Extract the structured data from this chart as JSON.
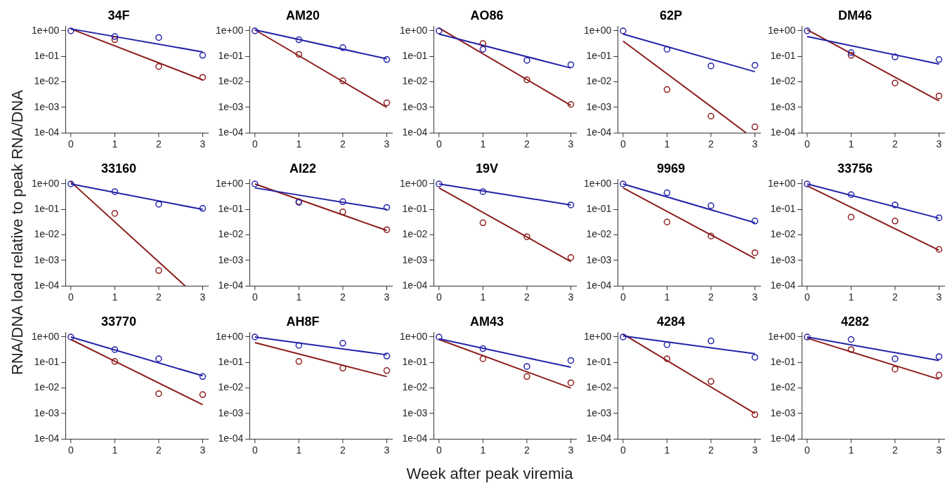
{
  "chart_data": [
    {
      "type": "scatter",
      "title": "34F",
      "x": [
        0,
        1,
        2,
        3
      ],
      "xlim": [
        -0.12,
        3.12
      ],
      "xticks": [
        0,
        1,
        2,
        3
      ],
      "ylim": [
        0.0001,
        1.5
      ],
      "yticks": [
        {
          "value": 1,
          "label": "1e+00"
        },
        {
          "value": 0.1,
          "label": "1e-01"
        },
        {
          "value": 0.01,
          "label": "1e-02"
        },
        {
          "value": 0.001,
          "label": "1e-03"
        },
        {
          "value": 0.0001,
          "label": "1e-04"
        }
      ],
      "log": "y",
      "marker": "circle",
      "series": [
        {
          "color": "#2323a8",
          "values": [
            1,
            0.6,
            0.55,
            0.11
          ]
        },
        {
          "color": "#8b1c1c",
          "values": [
            null,
            0.45,
            0.04,
            0.015
          ]
        },
        {
          "type": "line",
          "marker": "none",
          "color": "#2323a8",
          "x": [
            0,
            3
          ],
          "values": [
            1.2,
            0.15
          ]
        },
        {
          "type": "line",
          "marker": "none",
          "color": "#8b1c1c",
          "x": [
            0,
            3
          ],
          "values": [
            1.2,
            0.012
          ]
        }
      ]
    },
    {
      "type": "scatter",
      "title": "AM20",
      "x": [
        0,
        1,
        2,
        3
      ],
      "xlim": [
        -0.12,
        3.12
      ],
      "xticks": [
        0,
        1,
        2,
        3
      ],
      "ylim": [
        0.0001,
        1.5
      ],
      "yticks": [
        {
          "value": 1,
          "label": "1e+00"
        },
        {
          "value": 0.1,
          "label": "1e-01"
        },
        {
          "value": 0.01,
          "label": "1e-02"
        },
        {
          "value": 0.001,
          "label": "1e-03"
        },
        {
          "value": 0.0001,
          "label": "1e-04"
        }
      ],
      "log": "y",
      "marker": "circle",
      "series": [
        {
          "color": "#2323a8",
          "values": [
            1,
            0.45,
            0.22,
            0.075
          ]
        },
        {
          "color": "#8b1c1c",
          "values": [
            null,
            0.12,
            0.011,
            0.0015
          ]
        },
        {
          "type": "line",
          "marker": "none",
          "color": "#2323a8",
          "x": [
            0,
            3
          ],
          "values": [
            1.1,
            0.08
          ]
        },
        {
          "type": "line",
          "marker": "none",
          "color": "#8b1c1c",
          "x": [
            0,
            3
          ],
          "values": [
            1.1,
            0.001
          ]
        }
      ]
    },
    {
      "type": "scatter",
      "title": "AO86",
      "x": [
        0,
        1,
        2,
        3
      ],
      "xlim": [
        -0.12,
        3.12
      ],
      "xticks": [
        0,
        1,
        2,
        3
      ],
      "ylim": [
        0.0001,
        1.5
      ],
      "yticks": [
        {
          "value": 1,
          "label": "1e+00"
        },
        {
          "value": 0.1,
          "label": "1e-01"
        },
        {
          "value": 0.01,
          "label": "1e-02"
        },
        {
          "value": 0.001,
          "label": "1e-03"
        },
        {
          "value": 0.0001,
          "label": "1e-04"
        }
      ],
      "log": "y",
      "marker": "circle",
      "series": [
        {
          "color": "#2323a8",
          "values": [
            1,
            0.19,
            0.07,
            0.047
          ]
        },
        {
          "color": "#8b1c1c",
          "values": [
            null,
            0.32,
            0.012,
            0.0013
          ]
        },
        {
          "type": "line",
          "marker": "none",
          "color": "#2323a8",
          "x": [
            0,
            3
          ],
          "values": [
            0.75,
            0.035
          ]
        },
        {
          "type": "line",
          "marker": "none",
          "color": "#8b1c1c",
          "x": [
            0,
            3
          ],
          "values": [
            1.3,
            0.0012
          ]
        }
      ]
    },
    {
      "type": "scatter",
      "title": "62P",
      "x": [
        0,
        1,
        2,
        3
      ],
      "xlim": [
        -0.12,
        3.12
      ],
      "xticks": [
        0,
        1,
        2,
        3
      ],
      "ylim": [
        0.0001,
        1.5
      ],
      "yticks": [
        {
          "value": 1,
          "label": "1e+00"
        },
        {
          "value": 0.1,
          "label": "1e-01"
        },
        {
          "value": 0.01,
          "label": "1e-02"
        },
        {
          "value": 0.001,
          "label": "1e-03"
        },
        {
          "value": 0.0001,
          "label": "1e-04"
        }
      ],
      "log": "y",
      "marker": "circle",
      "series": [
        {
          "color": "#2323a8",
          "values": [
            1,
            0.19,
            0.042,
            0.045
          ]
        },
        {
          "color": "#8b1c1c",
          "values": [
            null,
            0.005,
            0.00045,
            0.00017
          ]
        },
        {
          "type": "line",
          "marker": "none",
          "color": "#2323a8",
          "x": [
            0,
            3
          ],
          "values": [
            0.75,
            0.025
          ]
        },
        {
          "type": "line",
          "marker": "none",
          "color": "#8b1c1c",
          "x": [
            0,
            2.8
          ],
          "values": [
            0.4,
            0.0001
          ]
        }
      ]
    },
    {
      "type": "scatter",
      "title": "DM46",
      "x": [
        0,
        1,
        2,
        3
      ],
      "xlim": [
        -0.12,
        3.12
      ],
      "xticks": [
        0,
        1,
        2,
        3
      ],
      "ylim": [
        0.0001,
        1.5
      ],
      "yticks": [
        {
          "value": 1,
          "label": "1e+00"
        },
        {
          "value": 0.1,
          "label": "1e-01"
        },
        {
          "value": 0.01,
          "label": "1e-02"
        },
        {
          "value": 0.001,
          "label": "1e-03"
        },
        {
          "value": 0.0001,
          "label": "1e-04"
        }
      ],
      "log": "y",
      "marker": "circle",
      "series": [
        {
          "color": "#2323a8",
          "values": [
            1,
            0.14,
            0.095,
            0.075
          ]
        },
        {
          "color": "#8b1c1c",
          "values": [
            null,
            0.11,
            0.009,
            0.0028
          ]
        },
        {
          "type": "line",
          "marker": "none",
          "color": "#2323a8",
          "x": [
            0,
            3
          ],
          "values": [
            0.6,
            0.05
          ]
        },
        {
          "type": "line",
          "marker": "none",
          "color": "#8b1c1c",
          "x": [
            0,
            3
          ],
          "values": [
            1.1,
            0.0018
          ]
        }
      ]
    },
    {
      "type": "scatter",
      "title": "33160",
      "ylabel": "RNA/DNA load relative to peak RNA/DNA",
      "x": [
        0,
        1,
        2,
        3
      ],
      "xlim": [
        -0.12,
        3.12
      ],
      "xticks": [
        0,
        1,
        2,
        3
      ],
      "ylim": [
        0.0001,
        1.5
      ],
      "yticks": [
        {
          "value": 1,
          "label": "1e+00"
        },
        {
          "value": 0.1,
          "label": "1e-01"
        },
        {
          "value": 0.01,
          "label": "1e-02"
        },
        {
          "value": 0.001,
          "label": "1e-03"
        },
        {
          "value": 0.0001,
          "label": "1e-04"
        }
      ],
      "log": "y",
      "marker": "circle",
      "series": [
        {
          "color": "#2323a8",
          "values": [
            1,
            0.5,
            0.16,
            0.11
          ]
        },
        {
          "color": "#8b1c1c",
          "x": [
            1,
            2
          ],
          "values": [
            0.07,
            0.0004
          ]
        },
        {
          "type": "line",
          "marker": "none",
          "color": "#2323a8",
          "x": [
            0,
            3
          ],
          "values": [
            1,
            0.1
          ]
        },
        {
          "type": "line",
          "marker": "none",
          "color": "#8b1c1c",
          "x": [
            0,
            2.6
          ],
          "values": [
            1.2,
            0.0001
          ]
        }
      ]
    },
    {
      "type": "scatter",
      "title": "AI22",
      "x": [
        0,
        1,
        2,
        3
      ],
      "xlim": [
        -0.12,
        3.12
      ],
      "xticks": [
        0,
        1,
        2,
        3
      ],
      "ylim": [
        0.0001,
        1.5
      ],
      "yticks": [
        {
          "value": 1,
          "label": "1e+00"
        },
        {
          "value": 0.1,
          "label": "1e-01"
        },
        {
          "value": 0.01,
          "label": "1e-02"
        },
        {
          "value": 0.001,
          "label": "1e-03"
        },
        {
          "value": 0.0001,
          "label": "1e-04"
        }
      ],
      "log": "y",
      "marker": "circle",
      "series": [
        {
          "color": "#2323a8",
          "values": [
            1,
            0.19,
            0.2,
            0.12
          ]
        },
        {
          "color": "#8b1c1c",
          "values": [
            null,
            0.2,
            0.08,
            0.016
          ]
        },
        {
          "type": "line",
          "marker": "none",
          "color": "#2323a8",
          "x": [
            0,
            3
          ],
          "values": [
            0.7,
            0.1
          ]
        },
        {
          "type": "line",
          "marker": "none",
          "color": "#8b1c1c",
          "x": [
            0,
            3
          ],
          "values": [
            1,
            0.015
          ]
        }
      ]
    },
    {
      "type": "scatter",
      "title": "19V",
      "xlim": [
        -0.12,
        3.12
      ],
      "xticks": [
        0,
        1,
        2,
        3
      ],
      "ylim": [
        0.0001,
        1.5
      ],
      "yticks": [
        {
          "value": 1,
          "label": "1e+00"
        },
        {
          "value": 0.1,
          "label": "1e-01"
        },
        {
          "value": 0.01,
          "label": "1e-02"
        },
        {
          "value": 0.001,
          "label": "1e-03"
        },
        {
          "value": 0.0001,
          "label": "1e-04"
        }
      ],
      "log": "y",
      "marker": "circle",
      "series": [
        {
          "color": "#2323a8",
          "x": [
            0,
            1,
            3
          ],
          "values": [
            1,
            0.5,
            0.15
          ]
        },
        {
          "color": "#8b1c1c",
          "x": [
            1,
            2,
            3
          ],
          "values": [
            0.03,
            0.0085,
            0.0013
          ]
        },
        {
          "type": "line",
          "marker": "none",
          "color": "#2323a8",
          "x": [
            0,
            3
          ],
          "values": [
            1,
            0.15
          ]
        },
        {
          "type": "line",
          "marker": "none",
          "color": "#8b1c1c",
          "x": [
            0,
            3
          ],
          "values": [
            0.7,
            0.0009
          ]
        }
      ]
    },
    {
      "type": "scatter",
      "title": "9969",
      "x": [
        0,
        1,
        2,
        3
      ],
      "xlim": [
        -0.12,
        3.12
      ],
      "xticks": [
        0,
        1,
        2,
        3
      ],
      "ylim": [
        0.0001,
        1.5
      ],
      "yticks": [
        {
          "value": 1,
          "label": "1e+00"
        },
        {
          "value": 0.1,
          "label": "1e-01"
        },
        {
          "value": 0.01,
          "label": "1e-02"
        },
        {
          "value": 0.001,
          "label": "1e-03"
        },
        {
          "value": 0.0001,
          "label": "1e-04"
        }
      ],
      "log": "y",
      "marker": "circle",
      "series": [
        {
          "color": "#2323a8",
          "values": [
            1,
            0.45,
            0.14,
            0.035
          ]
        },
        {
          "color": "#8b1c1c",
          "values": [
            null,
            0.032,
            0.009,
            0.002
          ]
        },
        {
          "type": "line",
          "marker": "none",
          "color": "#2323a8",
          "x": [
            0,
            3
          ],
          "values": [
            1,
            0.03
          ]
        },
        {
          "type": "line",
          "marker": "none",
          "color": "#8b1c1c",
          "x": [
            0,
            3
          ],
          "values": [
            0.7,
            0.0012
          ]
        }
      ]
    },
    {
      "type": "scatter",
      "title": "33756",
      "x": [
        0,
        1,
        2,
        3
      ],
      "xlim": [
        -0.12,
        3.12
      ],
      "xticks": [
        0,
        1,
        2,
        3
      ],
      "ylim": [
        0.0001,
        1.5
      ],
      "yticks": [
        {
          "value": 1,
          "label": "1e+00"
        },
        {
          "value": 0.1,
          "label": "1e-01"
        },
        {
          "value": 0.01,
          "label": "1e-02"
        },
        {
          "value": 0.001,
          "label": "1e-03"
        },
        {
          "value": 0.0001,
          "label": "1e-04"
        }
      ],
      "log": "y",
      "marker": "circle",
      "series": [
        {
          "color": "#2323a8",
          "values": [
            1,
            0.38,
            0.15,
            0.047
          ]
        },
        {
          "color": "#8b1c1c",
          "values": [
            null,
            0.05,
            0.035,
            0.0027
          ]
        },
        {
          "type": "line",
          "marker": "none",
          "color": "#2323a8",
          "x": [
            0,
            3
          ],
          "values": [
            1,
            0.045
          ]
        },
        {
          "type": "line",
          "marker": "none",
          "color": "#8b1c1c",
          "x": [
            0,
            3
          ],
          "values": [
            0.85,
            0.0025
          ]
        }
      ]
    },
    {
      "type": "scatter",
      "title": "33770",
      "x": [
        0,
        1,
        2,
        3
      ],
      "xlim": [
        -0.12,
        3.12
      ],
      "xticks": [
        0,
        1,
        2,
        3
      ],
      "ylim": [
        0.0001,
        1.5
      ],
      "yticks": [
        {
          "value": 1,
          "label": "1e+00"
        },
        {
          "value": 0.1,
          "label": "1e-01"
        },
        {
          "value": 0.01,
          "label": "1e-02"
        },
        {
          "value": 0.001,
          "label": "1e-03"
        },
        {
          "value": 0.0001,
          "label": "1e-04"
        }
      ],
      "log": "y",
      "marker": "circle",
      "series": [
        {
          "color": "#2323a8",
          "values": [
            1,
            0.32,
            0.14,
            0.028
          ]
        },
        {
          "color": "#8b1c1c",
          "values": [
            null,
            0.11,
            0.006,
            0.0055
          ]
        },
        {
          "type": "line",
          "marker": "none",
          "color": "#2323a8",
          "x": [
            0,
            3
          ],
          "values": [
            1,
            0.03
          ]
        },
        {
          "type": "line",
          "marker": "none",
          "color": "#8b1c1c",
          "x": [
            0,
            3
          ],
          "values": [
            0.8,
            0.0022
          ]
        }
      ]
    },
    {
      "type": "scatter",
      "title": "AH8F",
      "x": [
        0,
        1,
        2,
        3
      ],
      "xlim": [
        -0.12,
        3.12
      ],
      "xticks": [
        0,
        1,
        2,
        3
      ],
      "ylim": [
        0.0001,
        1.5
      ],
      "yticks": [
        {
          "value": 1,
          "label": "1e+00"
        },
        {
          "value": 0.1,
          "label": "1e-01"
        },
        {
          "value": 0.01,
          "label": "1e-02"
        },
        {
          "value": 0.001,
          "label": "1e-03"
        },
        {
          "value": 0.0001,
          "label": "1e-04"
        }
      ],
      "log": "y",
      "marker": "circle",
      "series": [
        {
          "color": "#2323a8",
          "values": [
            1,
            0.47,
            0.57,
            0.18
          ]
        },
        {
          "color": "#8b1c1c",
          "values": [
            null,
            0.11,
            0.06,
            0.048
          ]
        },
        {
          "type": "line",
          "marker": "none",
          "color": "#2323a8",
          "x": [
            0,
            3
          ],
          "values": [
            1,
            0.2
          ]
        },
        {
          "type": "line",
          "marker": "none",
          "color": "#8b1c1c",
          "x": [
            0,
            3
          ],
          "values": [
            0.6,
            0.028
          ]
        }
      ]
    },
    {
      "type": "scatter",
      "title": "AM43",
      "xlabel": "Week after peak viremia",
      "x": [
        0,
        1,
        2,
        3
      ],
      "xlim": [
        -0.12,
        3.12
      ],
      "xticks": [
        0,
        1,
        2,
        3
      ],
      "ylim": [
        0.0001,
        1.5
      ],
      "yticks": [
        {
          "value": 1,
          "label": "1e+00"
        },
        {
          "value": 0.1,
          "label": "1e-01"
        },
        {
          "value": 0.01,
          "label": "1e-02"
        },
        {
          "value": 0.001,
          "label": "1e-03"
        },
        {
          "value": 0.0001,
          "label": "1e-04"
        }
      ],
      "log": "y",
      "marker": "circle",
      "series": [
        {
          "color": "#2323a8",
          "values": [
            1,
            0.35,
            0.07,
            0.12
          ]
        },
        {
          "color": "#8b1c1c",
          "values": [
            null,
            0.14,
            0.028,
            0.016
          ]
        },
        {
          "type": "line",
          "marker": "none",
          "color": "#2323a8",
          "x": [
            0,
            3
          ],
          "values": [
            0.85,
            0.065
          ]
        },
        {
          "type": "line",
          "marker": "none",
          "color": "#8b1c1c",
          "x": [
            0,
            3
          ],
          "values": [
            0.8,
            0.01
          ]
        }
      ]
    },
    {
      "type": "scatter",
      "title": "4284",
      "x": [
        0,
        1,
        2,
        3
      ],
      "xlim": [
        -0.12,
        3.12
      ],
      "xticks": [
        0,
        1,
        2,
        3
      ],
      "ylim": [
        0.0001,
        1.5
      ],
      "yticks": [
        {
          "value": 1,
          "label": "1e+00"
        },
        {
          "value": 0.1,
          "label": "1e-01"
        },
        {
          "value": 0.01,
          "label": "1e-02"
        },
        {
          "value": 0.001,
          "label": "1e-03"
        },
        {
          "value": 0.0001,
          "label": "1e-04"
        }
      ],
      "log": "y",
      "marker": "circle",
      "series": [
        {
          "color": "#2323a8",
          "values": [
            1,
            0.5,
            0.7,
            0.16
          ]
        },
        {
          "color": "#8b1c1c",
          "values": [
            null,
            0.14,
            0.018,
            0.0009
          ]
        },
        {
          "type": "line",
          "marker": "none",
          "color": "#2323a8",
          "x": [
            0,
            3
          ],
          "values": [
            1.1,
            0.22
          ]
        },
        {
          "type": "line",
          "marker": "none",
          "color": "#8b1c1c",
          "x": [
            0,
            3
          ],
          "values": [
            1.3,
            0.001
          ]
        }
      ]
    },
    {
      "type": "scatter",
      "title": "4282",
      "x": [
        0,
        1,
        2,
        3
      ],
      "xlim": [
        -0.12,
        3.12
      ],
      "xticks": [
        0,
        1,
        2,
        3
      ],
      "ylim": [
        0.0001,
        1.5
      ],
      "yticks": [
        {
          "value": 1,
          "label": "1e+00"
        },
        {
          "value": 0.1,
          "label": "1e-01"
        },
        {
          "value": 0.01,
          "label": "1e-02"
        },
        {
          "value": 0.001,
          "label": "1e-03"
        },
        {
          "value": 0.0001,
          "label": "1e-04"
        }
      ],
      "log": "y",
      "marker": "circle",
      "series": [
        {
          "color": "#2323a8",
          "values": [
            1,
            0.8,
            0.14,
            0.17
          ]
        },
        {
          "color": "#8b1c1c",
          "values": [
            null,
            0.32,
            0.055,
            0.032
          ]
        },
        {
          "type": "line",
          "marker": "none",
          "color": "#2323a8",
          "x": [
            0,
            3
          ],
          "values": [
            1,
            0.12
          ]
        },
        {
          "type": "line",
          "marker": "none",
          "color": "#8b1c1c",
          "x": [
            0,
            3
          ],
          "values": [
            0.9,
            0.022
          ]
        }
      ]
    }
  ]
}
